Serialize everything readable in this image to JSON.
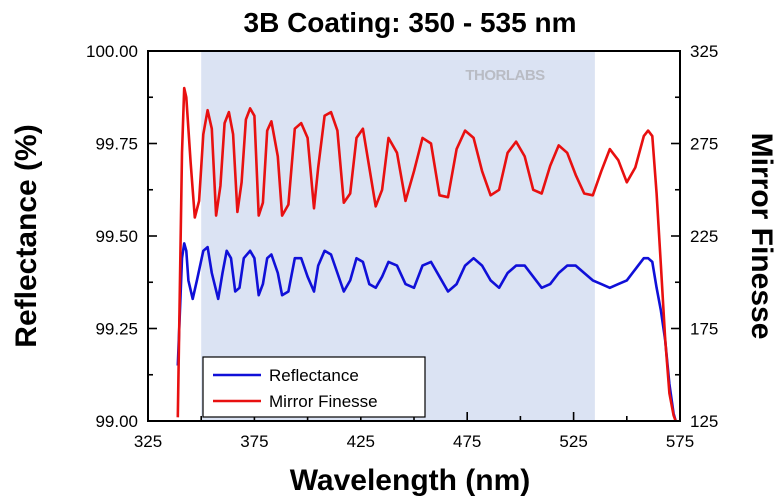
{
  "chart_data": {
    "type": "line",
    "title": "3B Coating: 350 - 535 nm",
    "xlabel": "Wavelength (nm)",
    "ylabel_left": "Reflectance (%)",
    "ylabel_right": "Mirror Finesse",
    "xlim": [
      325,
      575
    ],
    "ylim_left": [
      99.0,
      100.0
    ],
    "ylim_right": [
      125,
      325
    ],
    "xticks": [
      "325",
      "375",
      "425",
      "475",
      "525",
      "575"
    ],
    "yticks_left": [
      "99.00",
      "99.25",
      "99.50",
      "99.75",
      "100.00"
    ],
    "yticks_right": [
      "125",
      "175",
      "225",
      "275",
      "325"
    ],
    "shaded_band": {
      "x_start": 350,
      "x_end": 535,
      "color": "#dbe3f3"
    },
    "watermark": "THORLABS",
    "grid": false,
    "legend_position": "bottom-left",
    "colors": {
      "reflectance": "#1010d8",
      "finesse": "#e81010",
      "axes": "#000000"
    },
    "series": [
      {
        "name": "Reflectance",
        "axis": "left",
        "x": [
          339,
          341,
          342,
          343,
          344,
          346,
          348,
          351,
          353,
          355,
          358,
          360,
          362,
          364,
          366,
          368,
          370,
          373,
          375,
          377,
          379,
          381,
          383,
          386,
          388,
          391,
          394,
          397,
          400,
          403,
          405,
          408,
          411,
          414,
          417,
          420,
          423,
          426,
          429,
          432,
          435,
          438,
          442,
          446,
          450,
          454,
          458,
          462,
          466,
          470,
          474,
          478,
          482,
          486,
          490,
          494,
          498,
          502,
          506,
          510,
          514,
          518,
          522,
          526,
          530,
          534,
          538,
          542,
          546,
          550,
          554,
          558,
          560,
          562,
          564,
          566,
          568,
          570,
          572,
          573
        ],
        "y": [
          99.15,
          99.44,
          99.48,
          99.46,
          99.38,
          99.33,
          99.38,
          99.46,
          99.47,
          99.4,
          99.33,
          99.4,
          99.46,
          99.44,
          99.35,
          99.36,
          99.44,
          99.46,
          99.44,
          99.34,
          99.37,
          99.44,
          99.45,
          99.4,
          99.34,
          99.35,
          99.44,
          99.44,
          99.39,
          99.35,
          99.42,
          99.46,
          99.45,
          99.4,
          99.35,
          99.38,
          99.44,
          99.43,
          99.37,
          99.36,
          99.39,
          99.43,
          99.42,
          99.37,
          99.36,
          99.42,
          99.43,
          99.39,
          99.35,
          99.37,
          99.42,
          99.44,
          99.42,
          99.38,
          99.36,
          99.4,
          99.42,
          99.42,
          99.39,
          99.36,
          99.37,
          99.4,
          99.42,
          99.42,
          99.4,
          99.38,
          99.37,
          99.36,
          99.37,
          99.38,
          99.41,
          99.44,
          99.44,
          99.43,
          99.36,
          99.3,
          99.22,
          99.1,
          99.02,
          99.0
        ]
      },
      {
        "name": "Mirror Finesse",
        "axis": "right",
        "x": [
          339,
          341,
          342,
          343,
          345,
          347,
          349,
          351,
          353,
          355,
          357,
          359,
          361,
          363,
          365,
          367,
          369,
          371,
          373,
          375,
          377,
          379,
          381,
          383,
          386,
          388,
          391,
          394,
          397,
          400,
          403,
          405,
          408,
          411,
          414,
          417,
          420,
          423,
          426,
          429,
          432,
          435,
          438,
          442,
          446,
          450,
          454,
          458,
          462,
          466,
          470,
          474,
          478,
          482,
          486,
          490,
          494,
          498,
          502,
          506,
          510,
          514,
          518,
          522,
          526,
          530,
          534,
          538,
          542,
          546,
          550,
          554,
          558,
          560,
          562,
          564,
          566,
          568,
          570,
          572,
          573
        ],
        "y": [
          127,
          270,
          305,
          300,
          265,
          235,
          244,
          280,
          293,
          283,
          236,
          252,
          286,
          292,
          280,
          238,
          254,
          288,
          294,
          290,
          236,
          243,
          282,
          287,
          268,
          236,
          242,
          283,
          286,
          278,
          240,
          262,
          290,
          292,
          282,
          243,
          248,
          278,
          283,
          262,
          241,
          250,
          278,
          270,
          244,
          260,
          278,
          275,
          247,
          246,
          272,
          282,
          278,
          260,
          247,
          250,
          270,
          276,
          268,
          250,
          248,
          263,
          274,
          270,
          258,
          248,
          247,
          260,
          272,
          266,
          254,
          262,
          279,
          282,
          279,
          248,
          210,
          170,
          140,
          128,
          125
        ]
      }
    ]
  }
}
